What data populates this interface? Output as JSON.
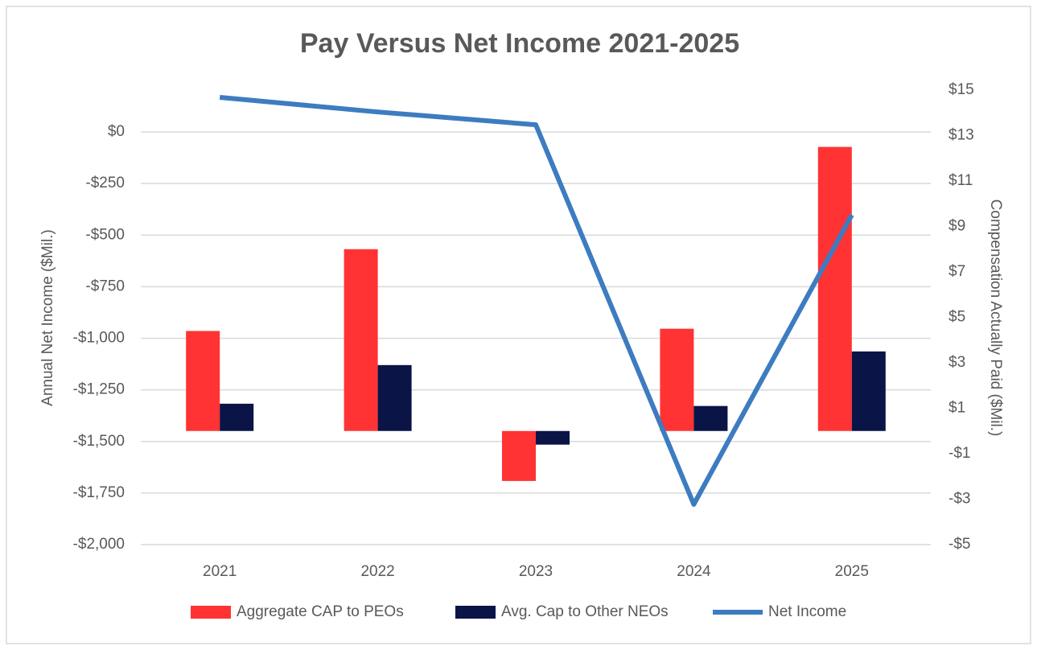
{
  "chart_data": {
    "type": "bar-line",
    "title": "Pay Versus Net Income 2021-2025",
    "y_label": "Annual Net Income ($Mil.)",
    "y2_label": "Compensation Actually Paid ($Mil.)",
    "categories": [
      "2021",
      "2022",
      "2023",
      "2024",
      "2025"
    ],
    "series": [
      {
        "name": "Aggregate CAP to PEOs",
        "type": "bar",
        "axis": "y2",
        "color": "#ff3333",
        "values": [
          4.4,
          8.0,
          -2.2,
          4.5,
          12.5
        ]
      },
      {
        "name": "Avg. Cap to Other NEOs",
        "type": "bar",
        "axis": "y2",
        "color": "#0a1446",
        "values": [
          1.2,
          2.9,
          -0.6,
          1.1,
          3.5
        ]
      },
      {
        "name": "Net Income",
        "type": "line",
        "axis": "y",
        "color": "#3d7cc0",
        "values": [
          168,
          97,
          35,
          -1805,
          -402
        ]
      }
    ],
    "ylim": [
      -2000,
      203
    ],
    "yticks": [
      {
        "value": 0,
        "label": "$0"
      },
      {
        "value": -250,
        "label": "-$250"
      },
      {
        "value": -500,
        "label": "-$500"
      },
      {
        "value": -750,
        "label": "-$750"
      },
      {
        "value": -1000,
        "label": "-$1,000"
      },
      {
        "value": -1250,
        "label": "-$1,250"
      },
      {
        "value": -1500,
        "label": "-$1,500"
      },
      {
        "value": -1750,
        "label": "-$1,750"
      },
      {
        "value": -2000,
        "label": "-$2,000"
      }
    ],
    "y2lim": [
      -5,
      15
    ],
    "y2ticks": [
      {
        "value": 15,
        "label": "$15"
      },
      {
        "value": 13,
        "label": "$13"
      },
      {
        "value": 11,
        "label": "$11"
      },
      {
        "value": 9,
        "label": "$9"
      },
      {
        "value": 7,
        "label": "$7"
      },
      {
        "value": 5,
        "label": "$5"
      },
      {
        "value": 3,
        "label": "$3"
      },
      {
        "value": 1,
        "label": "$1"
      },
      {
        "value": -1,
        "label": "-$1"
      },
      {
        "value": -3,
        "label": "-$3"
      },
      {
        "value": -5,
        "label": "-$5"
      }
    ],
    "grid": true,
    "legend": "bottom"
  }
}
